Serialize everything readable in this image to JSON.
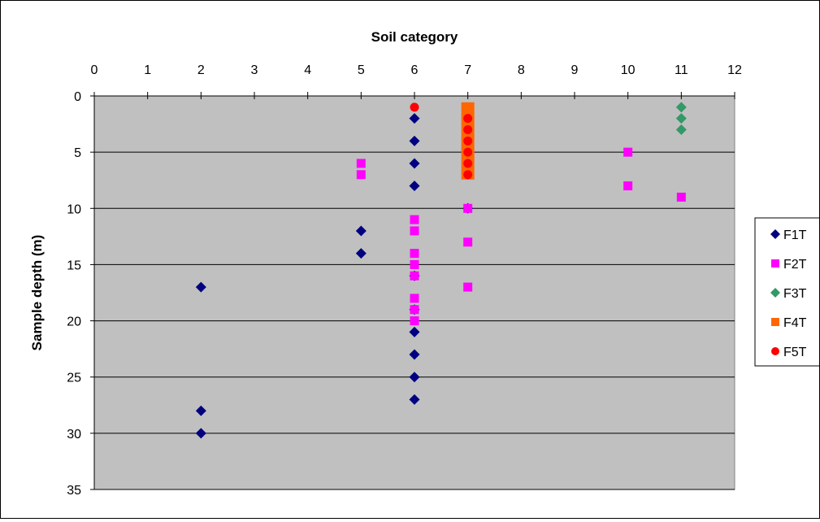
{
  "chart_data": {
    "type": "scatter",
    "title": "",
    "xlabel": "Soil category",
    "ylabel": "Sample depth (m)",
    "xlim": [
      0,
      12
    ],
    "ylim": [
      0,
      35
    ],
    "y_reversed": true,
    "x_ticks": [
      "0",
      "1",
      "2",
      "3",
      "4",
      "5",
      "6",
      "7",
      "8",
      "9",
      "10",
      "11",
      "12"
    ],
    "y_ticks": [
      "0",
      "5",
      "10",
      "15",
      "20",
      "25",
      "30",
      "35"
    ],
    "grid": "horizontal",
    "plot_background": "#c0c0c0",
    "legend_position": "right",
    "series": [
      {
        "name": "F1T",
        "marker": "diamond",
        "color": "#000080",
        "points": [
          [
            6,
            2
          ],
          [
            6,
            4
          ],
          [
            6,
            6
          ],
          [
            6,
            8
          ],
          [
            5,
            12
          ],
          [
            5,
            14
          ],
          [
            6,
            16
          ],
          [
            2,
            17
          ],
          [
            6,
            19
          ],
          [
            6,
            21
          ],
          [
            6,
            23
          ],
          [
            6,
            25
          ],
          [
            6,
            27
          ],
          [
            2,
            28
          ],
          [
            2,
            30
          ],
          [
            7,
            10
          ],
          [
            7,
            5
          ],
          [
            7,
            7
          ]
        ]
      },
      {
        "name": "F2T",
        "marker": "square",
        "color": "#ff00ff",
        "points": [
          [
            5,
            6
          ],
          [
            5,
            7
          ],
          [
            6,
            11
          ],
          [
            6,
            12
          ],
          [
            6,
            14
          ],
          [
            6,
            15
          ],
          [
            6,
            16
          ],
          [
            6,
            18
          ],
          [
            6,
            19
          ],
          [
            6,
            20
          ],
          [
            7,
            10
          ],
          [
            7,
            13
          ],
          [
            7,
            17
          ],
          [
            10,
            5
          ],
          [
            10,
            8
          ],
          [
            11,
            9
          ]
        ]
      },
      {
        "name": "F3T",
        "marker": "diamond",
        "color": "#339966",
        "points": [
          [
            11,
            1
          ],
          [
            11,
            2
          ],
          [
            11,
            3
          ],
          [
            7,
            4
          ]
        ]
      },
      {
        "name": "F4T",
        "marker": "square",
        "color": "#ff6600",
        "points": [
          [
            7,
            1
          ],
          [
            7,
            2
          ],
          [
            7,
            3
          ],
          [
            7,
            4
          ],
          [
            7,
            5
          ],
          [
            7,
            6
          ],
          [
            7,
            7
          ]
        ]
      },
      {
        "name": "F5T",
        "marker": "circle",
        "color": "#ff0000",
        "points": [
          [
            6,
            1
          ],
          [
            7,
            2
          ],
          [
            7,
            3
          ],
          [
            7,
            4
          ],
          [
            7,
            5
          ],
          [
            7,
            6
          ],
          [
            7,
            7
          ]
        ]
      }
    ]
  }
}
